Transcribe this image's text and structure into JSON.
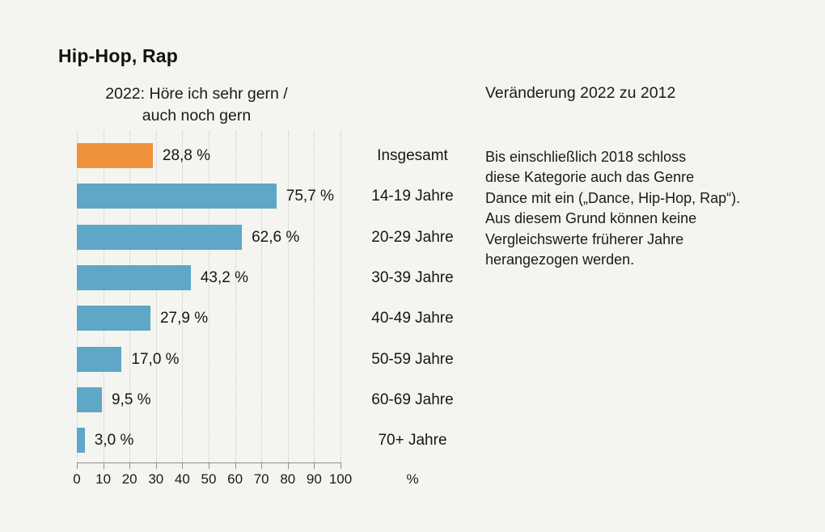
{
  "title": "Hip-Hop, Rap",
  "subtitle": {
    "line1": "2022: Höre ich sehr gern /",
    "line2": "auch noch gern"
  },
  "right_panel": {
    "header": "Veränderung 2022 zu 2012",
    "note_lines": [
      "Bis einschließlich 2018 schloss",
      "diese Kategorie auch das Genre",
      "Dance mit ein („Dance, Hip-Hop, Rap“).",
      "Aus diesem Grund können keine",
      "Vergleichswerte früherer Jahre",
      "herangezogen werden."
    ]
  },
  "chart_data": {
    "type": "bar",
    "orientation": "horizontal",
    "title": "Hip-Hop, Rap",
    "subtitle": "2022: Höre ich sehr gern / auch noch gern",
    "categories": [
      "Insgesamt",
      "14-19 Jahre",
      "20-29 Jahre",
      "30-39 Jahre",
      "40-49 Jahre",
      "50-59 Jahre",
      "60-69 Jahre",
      "70+ Jahre"
    ],
    "values": [
      28.8,
      75.7,
      62.6,
      43.2,
      27.9,
      17.0,
      9.5,
      3.0
    ],
    "value_labels": [
      "28,8 %",
      "75,7 %",
      "62,6 %",
      "43,2 %",
      "27,9 %",
      "17,0 %",
      "9,5 %",
      "3,0 %"
    ],
    "bar_colors": [
      "#f0913c",
      "#5fa7c7",
      "#5fa7c7",
      "#5fa7c7",
      "#5fa7c7",
      "#5fa7c7",
      "#5fa7c7",
      "#5fa7c7"
    ],
    "x_ticks": [
      0,
      10,
      20,
      30,
      40,
      50,
      60,
      70,
      80,
      90,
      100
    ],
    "x_unit": "%",
    "xlim": [
      0,
      100
    ],
    "grid": "dotted-vertical",
    "legend": "none"
  },
  "colors": {
    "background": "#f4f4f1",
    "bar_blue": "#5fa7c7",
    "bar_orange": "#f0913c",
    "text": "#1a1a18",
    "gridline": "#c7c7c5",
    "axis": "#8e8e8c"
  }
}
